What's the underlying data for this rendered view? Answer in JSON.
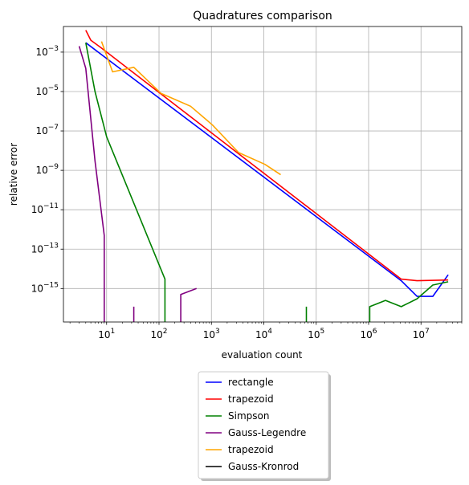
{
  "chart_data": {
    "type": "line",
    "title": "Quadratures comparison",
    "xlabel": "evaluation count",
    "ylabel": "relative error",
    "xscale": "log",
    "yscale": "log",
    "xlim": [
      1.5,
      60000000
    ],
    "ylim": [
      2e-17,
      0.02
    ],
    "grid": true,
    "legend_position": "below",
    "x_ticks": [
      {
        "value": 10,
        "base": "10",
        "exp": "1"
      },
      {
        "value": 100,
        "base": "10",
        "exp": "2"
      },
      {
        "value": 1000,
        "base": "10",
        "exp": "3"
      },
      {
        "value": 10000,
        "base": "10",
        "exp": "4"
      },
      {
        "value": 100000,
        "base": "10",
        "exp": "5"
      },
      {
        "value": 1000000,
        "base": "10",
        "exp": "6"
      },
      {
        "value": 10000000,
        "base": "10",
        "exp": "7"
      }
    ],
    "y_ticks": [
      {
        "value": 0.001,
        "base": "10",
        "exp": "−3"
      },
      {
        "value": 1e-05,
        "base": "10",
        "exp": "−5"
      },
      {
        "value": 1e-07,
        "base": "10",
        "exp": "−7"
      },
      {
        "value": 1e-09,
        "base": "10",
        "exp": "−9"
      },
      {
        "value": 1e-11,
        "base": "10",
        "exp": "−11"
      },
      {
        "value": 1e-13,
        "base": "10",
        "exp": "−13"
      },
      {
        "value": 1e-15,
        "base": "10",
        "exp": "−15"
      }
    ],
    "series": [
      {
        "name": "rectangle",
        "color": "#0000ff",
        "segments": [
          [
            [
              4,
              0.003
            ],
            [
              4200000,
              2.5e-15
            ],
            [
              8400000,
              4e-16
            ],
            [
              16800000,
              4e-16
            ],
            [
              33000000,
              5e-15
            ]
          ]
        ]
      },
      {
        "name": "trapezoid",
        "color": "#ff0000",
        "segments": [
          [
            [
              4,
              0.013
            ],
            [
              5,
              0.004
            ],
            [
              8,
              0.0016
            ],
            [
              4200000,
              3e-15
            ],
            [
              8400000,
              2.5e-15
            ],
            [
              33000000,
              2.7e-15
            ]
          ]
        ]
      },
      {
        "name": "Simpson",
        "color": "#008000",
        "segments": [
          [
            [
              4,
              0.003
            ],
            [
              6,
              1e-05
            ],
            [
              10,
              5e-08
            ],
            [
              130,
              3e-15
            ],
            [
              130,
              2e-17
            ]
          ],
          [
            [
              65000,
              2e-17
            ],
            [
              65000,
              1.2e-16
            ]
          ],
          [
            [
              1050000,
              2e-17
            ],
            [
              1050000,
              1.2e-16
            ],
            [
              2100000,
              2.5e-16
            ],
            [
              4200000,
              1.2e-16
            ],
            [
              8400000,
              3e-16
            ],
            [
              16800000,
              1.5e-15
            ],
            [
              33000000,
              2.2e-15
            ]
          ]
        ]
      },
      {
        "name": "Gauss-Legendre",
        "color": "#800080",
        "segments": [
          [
            [
              3,
              0.002
            ],
            [
              4,
              0.00015
            ],
            [
              6,
              3e-09
            ],
            [
              9,
              5e-13
            ],
            [
              9,
              2e-17
            ]
          ],
          [
            [
              33,
              2e-17
            ],
            [
              33,
              1.2e-16
            ]
          ],
          [
            [
              260,
              2e-17
            ],
            [
              260,
              5e-16
            ],
            [
              520,
              1e-15
            ]
          ]
        ]
      },
      {
        "name": "trapezoid",
        "color": "#ffa500",
        "segments": [
          [
            [
              8,
              0.0035
            ],
            [
              13,
              0.0001
            ],
            [
              33,
              0.00017
            ],
            [
              110,
              8e-06
            ],
            [
              400,
              1.8e-06
            ],
            [
              1050,
              2e-07
            ],
            [
              3300,
              8e-09
            ],
            [
              10500,
              2e-09
            ],
            [
              21000,
              6e-10
            ]
          ]
        ]
      },
      {
        "name": "Gauss-Kronrod",
        "color": "#000000",
        "segments": []
      }
    ]
  }
}
